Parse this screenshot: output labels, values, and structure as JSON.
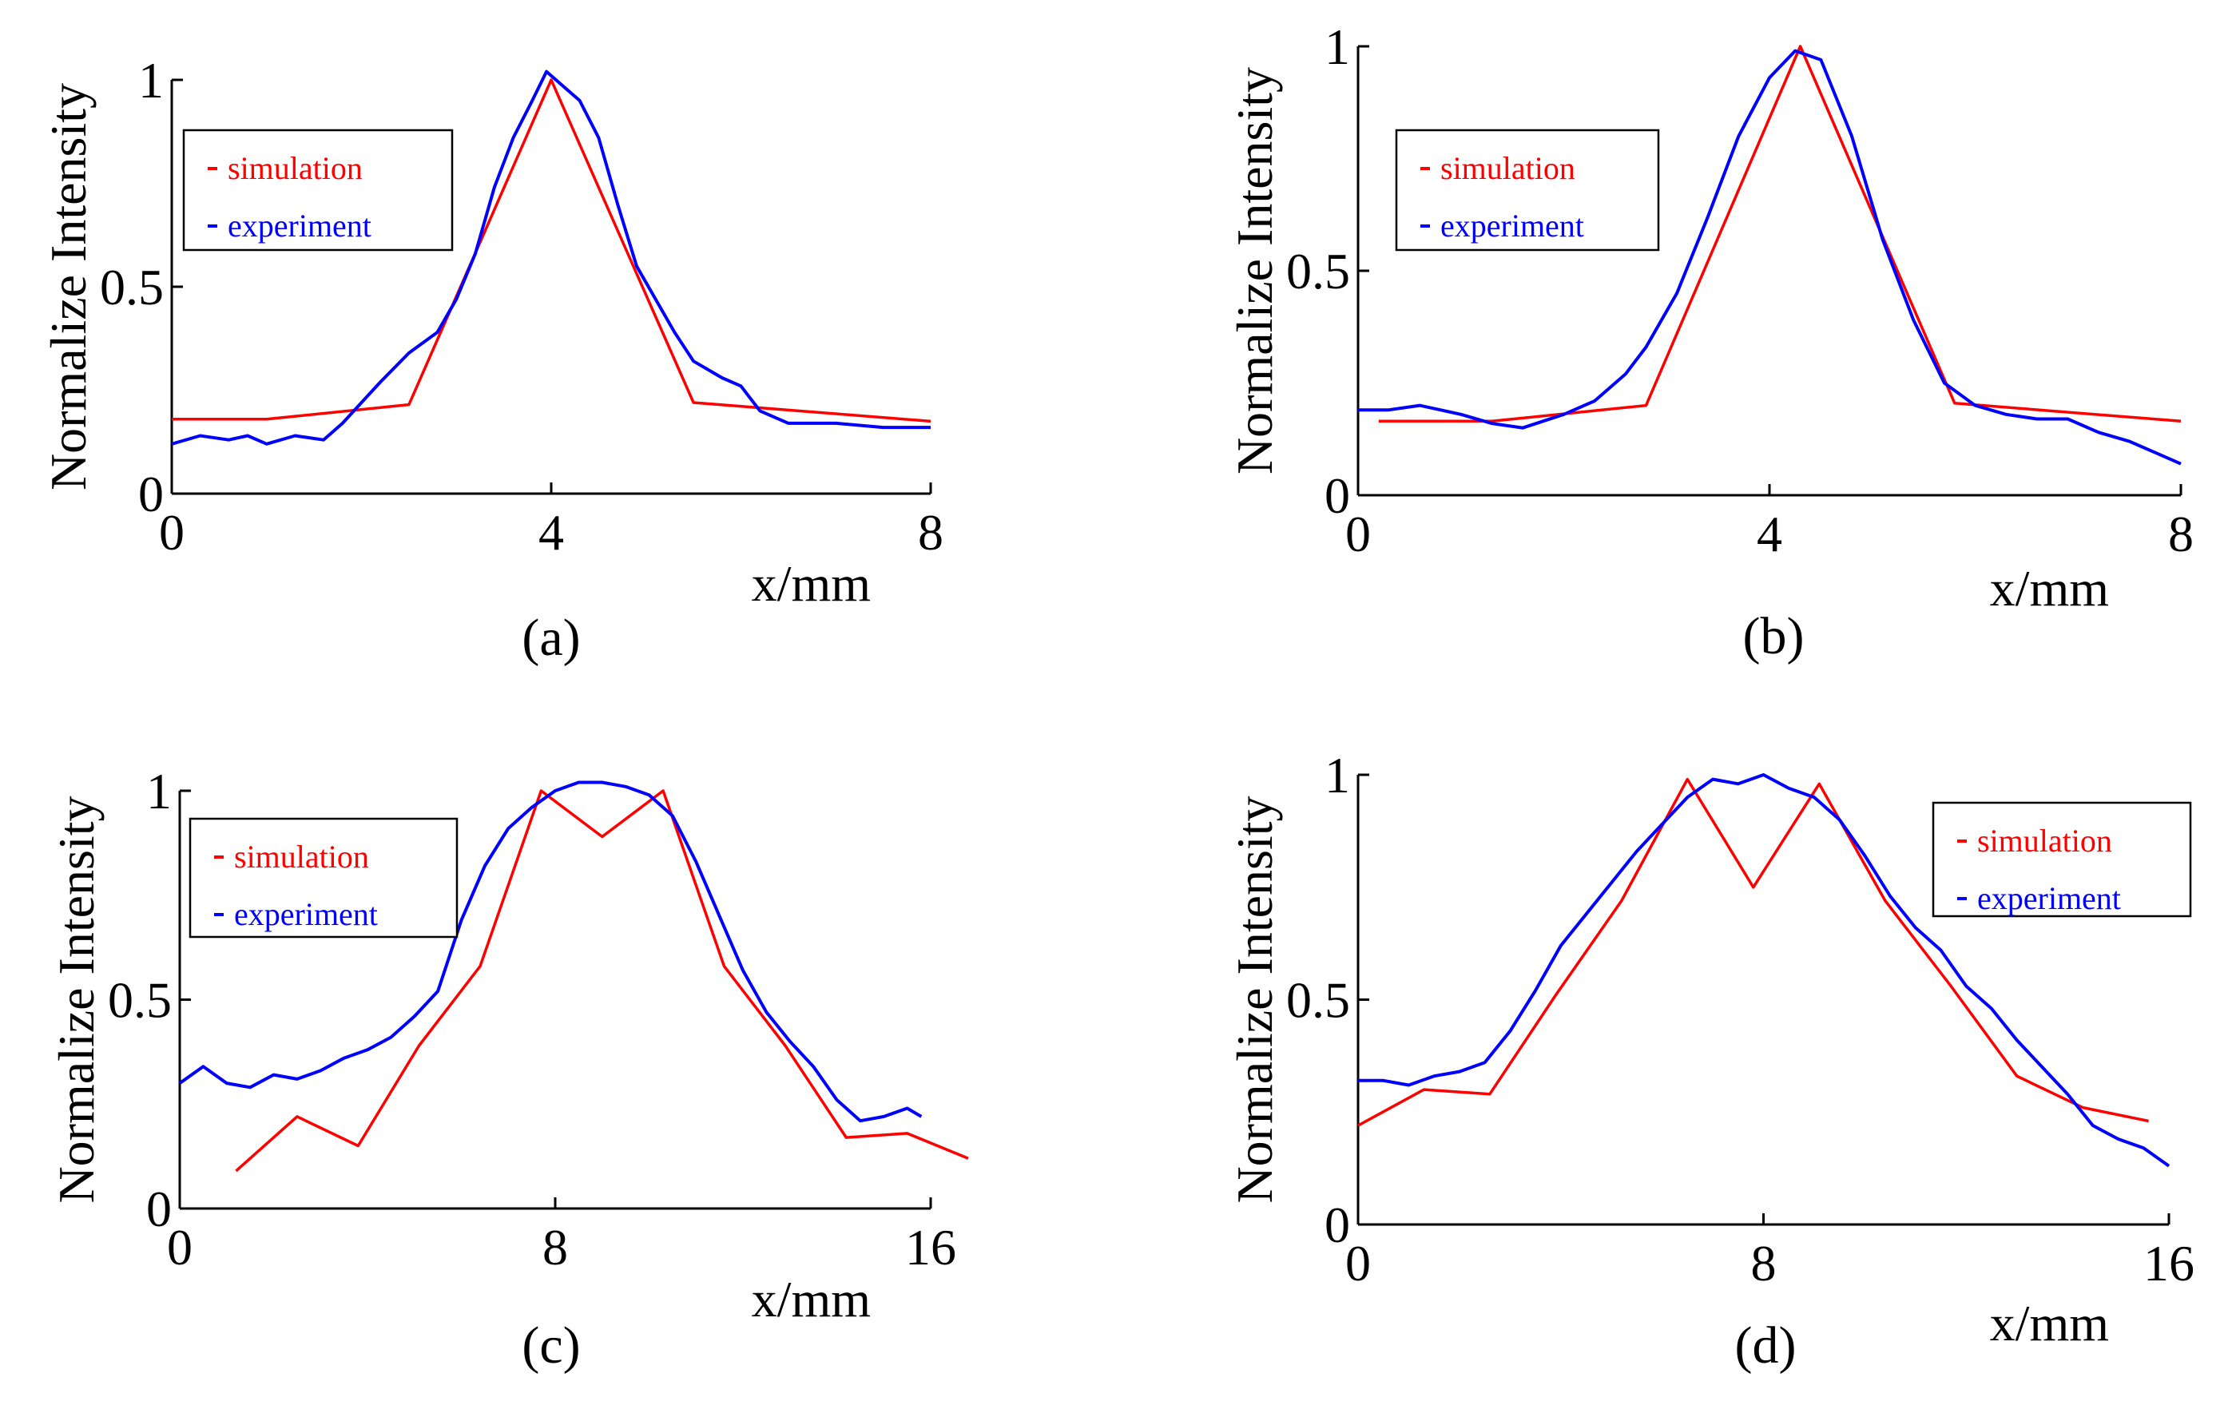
{
  "chart_data": [
    {
      "type": "line",
      "caption": "(a)",
      "xlabel": "x/mm",
      "ylabel": "Normalize Intensity",
      "xlim": [
        0,
        8
      ],
      "ylim": [
        0,
        1
      ],
      "xticks": [
        "0",
        "4",
        "8"
      ],
      "yticks": [
        "0",
        "0.5",
        "1"
      ],
      "legend": {
        "placement": "top-left",
        "entries": [
          "simulation",
          "experiment"
        ]
      },
      "series": [
        {
          "name": "simulation",
          "color": "#ff0000",
          "x": [
            0,
            1,
            2.5,
            4,
            5.5,
            8
          ],
          "y": [
            0.18,
            0.18,
            0.215,
            1.0,
            0.22,
            0.175
          ]
        },
        {
          "name": "experiment",
          "color": "#0000ff",
          "x": [
            0,
            0.3,
            0.6,
            0.8,
            1.0,
            1.3,
            1.6,
            1.8,
            2.0,
            2.2,
            2.5,
            2.8,
            3.0,
            3.2,
            3.4,
            3.6,
            3.8,
            3.95,
            4.1,
            4.3,
            4.5,
            4.7,
            4.9,
            5.1,
            5.3,
            5.5,
            5.8,
            6.0,
            6.2,
            6.5,
            7.0,
            7.5,
            8.0
          ],
          "y": [
            0.12,
            0.14,
            0.13,
            0.14,
            0.12,
            0.14,
            0.13,
            0.17,
            0.22,
            0.27,
            0.34,
            0.39,
            0.47,
            0.58,
            0.74,
            0.86,
            0.95,
            1.02,
            0.99,
            0.95,
            0.86,
            0.7,
            0.55,
            0.47,
            0.39,
            0.32,
            0.28,
            0.26,
            0.2,
            0.17,
            0.17,
            0.16,
            0.16
          ]
        }
      ]
    },
    {
      "type": "line",
      "caption": "(b)",
      "xlabel": "x/mm",
      "ylabel": "Normalize Intensity",
      "xlim": [
        0,
        8
      ],
      "ylim": [
        0,
        1
      ],
      "xticks": [
        "0",
        "4",
        "8"
      ],
      "yticks": [
        "0",
        "0.5",
        "1"
      ],
      "legend": {
        "placement": "top-left",
        "entries": [
          "simulation",
          "experiment"
        ]
      },
      "series": [
        {
          "name": "simulation",
          "color": "#ff0000",
          "x": [
            0.2,
            1.3,
            2.8,
            4.3,
            5.8,
            8.0
          ],
          "y": [
            0.165,
            0.165,
            0.2,
            1.0,
            0.205,
            0.165
          ]
        },
        {
          "name": "experiment",
          "color": "#0000ff",
          "x": [
            0,
            0.3,
            0.6,
            1.0,
            1.3,
            1.6,
            2.0,
            2.3,
            2.6,
            2.8,
            3.1,
            3.4,
            3.7,
            4.0,
            4.25,
            4.5,
            4.8,
            5.1,
            5.4,
            5.7,
            6.0,
            6.3,
            6.6,
            6.9,
            7.2,
            7.5,
            7.8,
            8.0
          ],
          "y": [
            0.19,
            0.19,
            0.2,
            0.18,
            0.16,
            0.15,
            0.18,
            0.21,
            0.27,
            0.33,
            0.45,
            0.62,
            0.8,
            0.93,
            0.99,
            0.97,
            0.8,
            0.57,
            0.39,
            0.25,
            0.2,
            0.18,
            0.17,
            0.17,
            0.14,
            0.12,
            0.09,
            0.07
          ]
        }
      ]
    },
    {
      "type": "line",
      "caption": "(c)",
      "xlabel": "x/mm",
      "ylabel": "Normalize Intensity",
      "xlim": [
        0,
        16
      ],
      "ylim": [
        0,
        1
      ],
      "xticks": [
        "0",
        "8",
        "16"
      ],
      "yticks": [
        "0",
        "0.5",
        "1"
      ],
      "legend": {
        "placement": "top-left",
        "entries": [
          "simulation",
          "experiment"
        ]
      },
      "series": [
        {
          "name": "simulation",
          "color": "#ff0000",
          "x": [
            1.2,
            2.5,
            3.8,
            5.1,
            6.4,
            7.7,
            9.0,
            10.3,
            11.6,
            12.9,
            14.2,
            15.5,
            16.8
          ],
          "y": [
            0.09,
            0.22,
            0.15,
            0.39,
            0.58,
            1.0,
            0.89,
            1.0,
            0.58,
            0.39,
            0.17,
            0.18,
            0.12
          ]
        },
        {
          "name": "experiment",
          "color": "#0000ff",
          "x": [
            0,
            0.5,
            1.0,
            1.5,
            2.0,
            2.5,
            3.0,
            3.5,
            4.0,
            4.5,
            5.0,
            5.5,
            6.0,
            6.5,
            7.0,
            7.5,
            8.0,
            8.5,
            9.0,
            9.5,
            10.0,
            10.5,
            11.0,
            11.5,
            12.0,
            12.5,
            13.0,
            13.5,
            14.0,
            14.5,
            15.0,
            15.5,
            15.8
          ],
          "y": [
            0.3,
            0.34,
            0.3,
            0.29,
            0.32,
            0.31,
            0.33,
            0.36,
            0.38,
            0.41,
            0.46,
            0.52,
            0.69,
            0.82,
            0.91,
            0.96,
            1.0,
            1.02,
            1.02,
            1.01,
            0.99,
            0.94,
            0.83,
            0.7,
            0.57,
            0.47,
            0.4,
            0.34,
            0.26,
            0.21,
            0.22,
            0.24,
            0.22
          ]
        }
      ]
    },
    {
      "type": "line",
      "caption": "(d)",
      "xlabel": "x/mm",
      "ylabel": "Normalize Intensity",
      "xlim": [
        0,
        16
      ],
      "ylim": [
        0,
        1
      ],
      "xticks": [
        "0",
        "8",
        "16"
      ],
      "yticks": [
        "0",
        "0.5",
        "1"
      ],
      "legend": {
        "placement": "top-right",
        "entries": [
          "simulation",
          "experiment"
        ]
      },
      "series": [
        {
          "name": "simulation",
          "color": "#ff0000",
          "x": [
            0,
            1.3,
            2.6,
            3.9,
            5.2,
            6.5,
            7.8,
            9.1,
            10.4,
            11.7,
            13.0,
            14.3,
            15.6
          ],
          "y": [
            0.22,
            0.3,
            0.29,
            0.51,
            0.72,
            0.99,
            0.75,
            0.98,
            0.72,
            0.53,
            0.33,
            0.26,
            0.23
          ]
        },
        {
          "name": "experiment",
          "color": "#0000ff",
          "x": [
            0,
            0.5,
            1.0,
            1.5,
            2.0,
            2.5,
            3.0,
            3.5,
            4.0,
            4.5,
            5.0,
            5.5,
            6.0,
            6.5,
            7.0,
            7.5,
            8.0,
            8.5,
            9.0,
            9.5,
            10.0,
            10.5,
            11.0,
            11.5,
            12.0,
            12.5,
            13.0,
            13.5,
            14.0,
            14.5,
            15.0,
            15.5,
            16.0
          ],
          "y": [
            0.32,
            0.32,
            0.31,
            0.33,
            0.34,
            0.36,
            0.43,
            0.52,
            0.62,
            0.69,
            0.76,
            0.83,
            0.89,
            0.95,
            0.99,
            0.98,
            1.0,
            0.97,
            0.95,
            0.9,
            0.82,
            0.73,
            0.66,
            0.61,
            0.53,
            0.48,
            0.41,
            0.35,
            0.29,
            0.22,
            0.19,
            0.17,
            0.13
          ]
        }
      ]
    }
  ]
}
